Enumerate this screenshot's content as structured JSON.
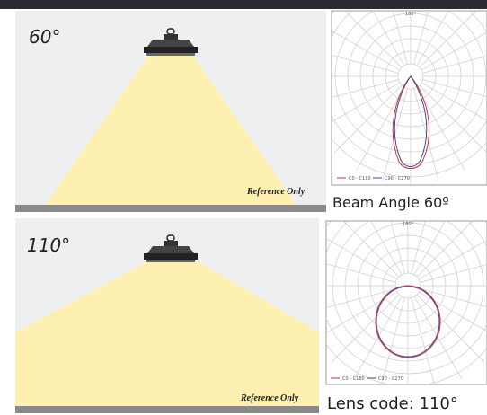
{
  "panels": [
    {
      "angle_label": "60°",
      "note": "Reference Only",
      "caption": "Beam Angle 60º",
      "diagram": {
        "top_label": "180°",
        "legend": [
          "C0 - C180",
          "C90 - C270"
        ]
      }
    },
    {
      "angle_label": "110°",
      "note": "Reference Only",
      "caption": "Lens code: 110°",
      "diagram": {
        "top_label": "180°",
        "legend": [
          "C0 - C180",
          "C90 - C270"
        ]
      }
    }
  ]
}
